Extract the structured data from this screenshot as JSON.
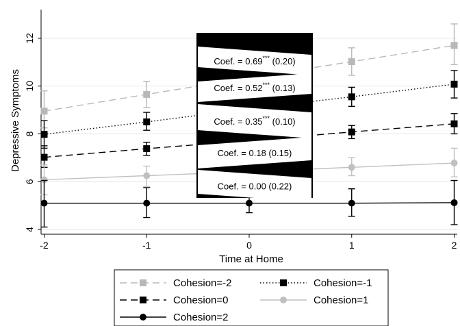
{
  "chart_data": {
    "type": "line",
    "xlabel": "Time at Home",
    "ylabel": "Depressive Symptoms",
    "x": [
      -2,
      -1,
      0,
      1,
      2
    ],
    "x_tick_labels": [
      "-2",
      "-1",
      "0",
      "1",
      "2"
    ],
    "xlim": [
      -2.03,
      2.03
    ],
    "ylim": [
      3.8,
      13.2
    ],
    "y_ticks": [
      4,
      6,
      8,
      10,
      12
    ],
    "y_tick_labels": [
      "4",
      "6",
      "8",
      "10",
      "12"
    ],
    "grid": "horizontal",
    "legend_position": "bottom",
    "series": [
      {
        "name": "Cohesion=-2",
        "color": "#b8b8b8",
        "dash": "dashed",
        "marker": "square",
        "values": [
          8.95,
          9.65,
          10.35,
          11.02,
          11.7
        ],
        "ci_low": [
          8.25,
          9.1,
          9.85,
          10.45,
          10.9
        ],
        "ci_high": [
          9.8,
          10.2,
          10.85,
          11.6,
          12.6
        ]
      },
      {
        "name": "Cohesion=-1",
        "color": "#000000",
        "dash": "dotted",
        "marker": "square",
        "values": [
          7.98,
          8.5,
          9.05,
          9.55,
          10.08
        ],
        "ci_low": [
          7.4,
          8.15,
          8.6,
          9.15,
          9.5
        ],
        "ci_high": [
          8.55,
          8.9,
          9.5,
          9.95,
          10.65
        ]
      },
      {
        "name": "Cohesion=0",
        "color": "#000000",
        "dash": "dashed",
        "marker": "square",
        "values": [
          7.02,
          7.38,
          7.72,
          8.08,
          8.42
        ],
        "ci_low": [
          6.6,
          7.1,
          7.45,
          7.8,
          8.0
        ],
        "ci_high": [
          7.5,
          7.65,
          8.0,
          8.35,
          8.85
        ]
      },
      {
        "name": "Cohesion=1",
        "color": "#c0c0c0",
        "dash": "solid",
        "marker": "circle",
        "values": [
          6.08,
          6.25,
          6.42,
          6.6,
          6.78
        ],
        "ci_low": [
          5.45,
          5.8,
          6.1,
          6.25,
          6.2
        ],
        "ci_high": [
          6.7,
          6.65,
          6.75,
          7.0,
          7.4
        ]
      },
      {
        "name": "Cohesion=2",
        "color": "#000000",
        "dash": "solid",
        "marker": "circle",
        "values": [
          5.1,
          5.1,
          5.1,
          5.1,
          5.12
        ],
        "ci_low": [
          4.1,
          4.5,
          4.7,
          4.55,
          4.2
        ],
        "ci_high": [
          6.05,
          5.75,
          5.5,
          5.7,
          6.05
        ]
      }
    ],
    "annotations": [
      {
        "text": "Coef. = 0.69*** (0.20)",
        "pre": "Coef. = 0.69",
        "sup": "***",
        "post": " (0.20)",
        "series": "Cohesion=-2"
      },
      {
        "text": "Coef. = 0.52*** (0.13)",
        "pre": "Coef. = 0.52",
        "sup": "***",
        "post": " (0.13)",
        "series": "Cohesion=-1"
      },
      {
        "text": "Coef. = 0.35*** (0.10)",
        "pre": "Coef. = 0.35",
        "sup": "***",
        "post": " (0.10)",
        "series": "Cohesion=0"
      },
      {
        "text": "Coef. = 0.18 (0.15)",
        "pre": "Coef. = 0.18 (0.15)",
        "sup": "",
        "post": "",
        "series": "Cohesion=1"
      },
      {
        "text": "Coef. = 0.00 (0.22)",
        "pre": "Coef. = 0.00 (0.22)",
        "sup": "",
        "post": "",
        "series": "Cohesion=2"
      }
    ]
  }
}
